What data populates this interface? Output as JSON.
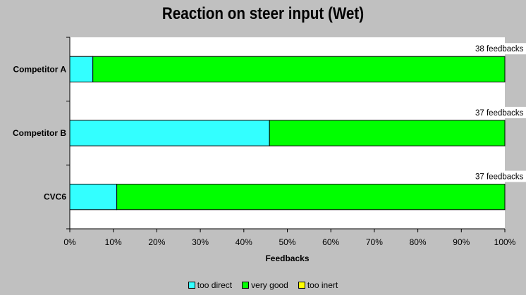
{
  "chart_data": {
    "type": "bar",
    "orientation": "horizontal",
    "stacked": "percent",
    "title": "Reaction on steer input (Wet)",
    "xlabel": "Feedbacks",
    "ylabel": "",
    "xlim": [
      0,
      100
    ],
    "x_ticks": [
      "0%",
      "10%",
      "20%",
      "30%",
      "40%",
      "50%",
      "60%",
      "70%",
      "80%",
      "90%",
      "100%"
    ],
    "categories": [
      "Competitor A",
      "Competitor B",
      "CVC6"
    ],
    "series": [
      {
        "name": "too direct",
        "color": "#33ffff",
        "values": [
          5.3,
          45.9,
          10.8
        ]
      },
      {
        "name": "very good",
        "color": "#00ff00",
        "values": [
          94.7,
          54.1,
          89.2
        ]
      },
      {
        "name": "too inert",
        "color": "#ffff00",
        "values": [
          0,
          0,
          0
        ]
      }
    ],
    "annotations": [
      "38 feedbacks",
      "37 feedbacks",
      "37 feedbacks"
    ],
    "grid": false,
    "legend_position": "bottom"
  }
}
